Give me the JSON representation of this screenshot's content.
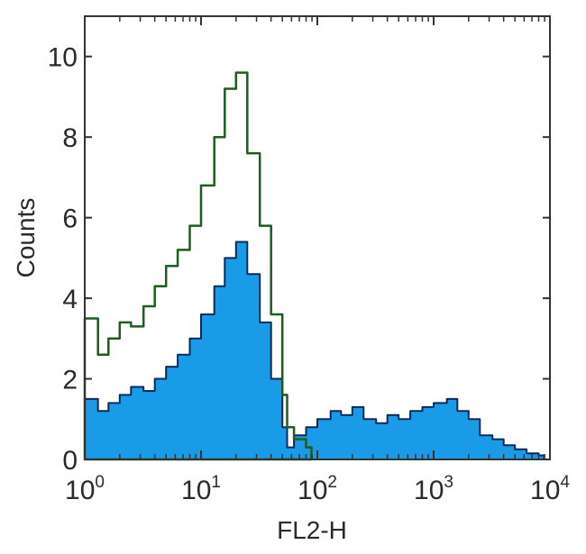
{
  "chart_data": {
    "type": "area",
    "xlabel": "FL2-H",
    "ylabel": "Counts",
    "x_scale": "log",
    "xlim": [
      1,
      10000
    ],
    "ylim": [
      0,
      11
    ],
    "x_ticks": [
      {
        "base": "10",
        "exp": "0"
      },
      {
        "base": "10",
        "exp": "1"
      },
      {
        "base": "10",
        "exp": "2"
      },
      {
        "base": "10",
        "exp": "3"
      },
      {
        "base": "10",
        "exp": "4"
      }
    ],
    "y_ticks": [
      "0",
      "2",
      "4",
      "6",
      "8",
      "10"
    ],
    "grid": false,
    "colors": {
      "filled_series": "#1a9be8",
      "filled_outline": "#0b2a55",
      "overlay_series": "#1f5c1f",
      "axes": "#333333"
    },
    "series": [
      {
        "style": "filled-histogram",
        "x": [
          1.0,
          1.3,
          1.6,
          2.0,
          2.5,
          3.2,
          4.0,
          5.0,
          6.3,
          8.0,
          10,
          13,
          16,
          20,
          25,
          32,
          40,
          50,
          55,
          63,
          80,
          100,
          130,
          160,
          200,
          250,
          320,
          400,
          500,
          630,
          800,
          1000,
          1300,
          1600,
          2000,
          2500,
          3200,
          4000,
          5000,
          6300,
          8000
        ],
        "values": [
          1.5,
          1.2,
          1.4,
          1.6,
          1.8,
          1.7,
          2.0,
          2.3,
          2.6,
          3.0,
          3.6,
          4.3,
          5.0,
          5.4,
          4.6,
          3.4,
          2.0,
          0.8,
          0.3,
          0.6,
          0.8,
          1.0,
          1.2,
          1.1,
          1.3,
          1.0,
          0.9,
          1.1,
          1.0,
          1.2,
          1.3,
          1.4,
          1.5,
          1.2,
          1.0,
          0.6,
          0.5,
          0.35,
          0.25,
          0.15,
          0.1
        ]
      },
      {
        "style": "overlay-histogram",
        "x": [
          1.0,
          1.3,
          1.6,
          2.0,
          2.5,
          3.2,
          4.0,
          5.0,
          6.3,
          8.0,
          10,
          13,
          16,
          20,
          25,
          32,
          40,
          50,
          55,
          63,
          80
        ],
        "values": [
          3.5,
          2.6,
          3.0,
          3.4,
          3.3,
          3.8,
          4.3,
          4.8,
          5.2,
          5.8,
          6.8,
          8.0,
          9.2,
          9.6,
          7.6,
          5.8,
          3.6,
          1.6,
          0.8,
          0.5,
          0.3
        ]
      }
    ]
  }
}
